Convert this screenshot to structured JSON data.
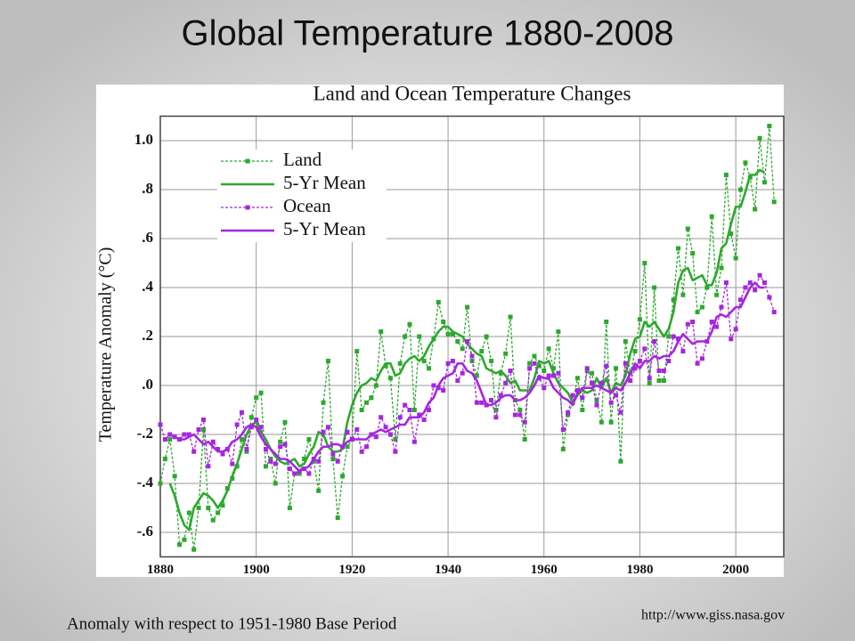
{
  "page": {
    "title": "Global Temperature 1880-2008",
    "footnote": "Anomaly with respect to 1951-1980 Base Period",
    "source": "http://www.giss.nasa.gov"
  },
  "chart_data": {
    "type": "line",
    "title": "Land and Ocean Temperature Changes",
    "y_label": "Temperature Anomaly (°C)",
    "x": [
      1880,
      1881,
      1882,
      1883,
      1884,
      1885,
      1886,
      1887,
      1888,
      1889,
      1890,
      1891,
      1892,
      1893,
      1894,
      1895,
      1896,
      1897,
      1898,
      1899,
      1900,
      1901,
      1902,
      1903,
      1904,
      1905,
      1906,
      1907,
      1908,
      1909,
      1910,
      1911,
      1912,
      1913,
      1914,
      1915,
      1916,
      1917,
      1918,
      1919,
      1920,
      1921,
      1922,
      1923,
      1924,
      1925,
      1926,
      1927,
      1928,
      1929,
      1930,
      1931,
      1932,
      1933,
      1934,
      1935,
      1936,
      1937,
      1938,
      1939,
      1940,
      1941,
      1942,
      1943,
      1944,
      1945,
      1946,
      1947,
      1948,
      1949,
      1950,
      1951,
      1952,
      1953,
      1954,
      1955,
      1956,
      1957,
      1958,
      1959,
      1960,
      1961,
      1962,
      1963,
      1964,
      1965,
      1966,
      1967,
      1968,
      1969,
      1970,
      1971,
      1972,
      1973,
      1974,
      1975,
      1976,
      1977,
      1978,
      1979,
      1980,
      1981,
      1982,
      1983,
      1984,
      1985,
      1986,
      1987,
      1988,
      1989,
      1990,
      1991,
      1992,
      1993,
      1994,
      1995,
      1996,
      1997,
      1998,
      1999,
      2000,
      2001,
      2002,
      2003,
      2004,
      2005,
      2006,
      2007,
      2008
    ],
    "series": [
      {
        "name": "Land",
        "color": "#2ea82e",
        "dashed": true,
        "markers": true,
        "values": [
          -0.4,
          -0.3,
          -0.22,
          -0.37,
          -0.65,
          -0.63,
          -0.52,
          -0.67,
          -0.5,
          -0.18,
          -0.5,
          -0.55,
          -0.52,
          -0.49,
          -0.42,
          -0.38,
          -0.33,
          -0.22,
          -0.27,
          -0.13,
          -0.05,
          -0.03,
          -0.33,
          -0.3,
          -0.4,
          -0.23,
          -0.15,
          -0.5,
          -0.36,
          -0.36,
          -0.3,
          -0.22,
          -0.31,
          -0.43,
          -0.07,
          0.1,
          -0.3,
          -0.54,
          -0.37,
          -0.25,
          -0.22,
          0.14,
          -0.1,
          -0.07,
          -0.05,
          0.0,
          0.22,
          0.08,
          0.03,
          -0.22,
          0.09,
          0.2,
          0.25,
          -0.1,
          0.2,
          0.1,
          0.07,
          0.19,
          0.34,
          0.26,
          0.21,
          0.21,
          0.18,
          0.15,
          0.32,
          0.1,
          0.04,
          0.14,
          0.2,
          0.1,
          -0.1,
          0.05,
          0.13,
          0.28,
          -0.06,
          -0.1,
          -0.22,
          0.09,
          0.12,
          0.08,
          0.06,
          0.15,
          0.07,
          0.22,
          -0.26,
          -0.12,
          -0.07,
          0.03,
          -0.1,
          0.06,
          0.05,
          -0.06,
          -0.15,
          0.26,
          -0.15,
          0.07,
          -0.31,
          0.18,
          0.05,
          0.14,
          0.27,
          0.5,
          0.01,
          0.4,
          0.02,
          0.02,
          0.2,
          0.35,
          0.56,
          0.37,
          0.64,
          0.54,
          0.3,
          0.32,
          0.4,
          0.69,
          0.37,
          0.48,
          0.86,
          0.62,
          0.52,
          0.8,
          0.91,
          0.85,
          0.72,
          1.01,
          0.83,
          1.06,
          0.75
        ]
      },
      {
        "name": "5-Yr Mean",
        "color": "#2ea82e",
        "dashed": false,
        "markers": false,
        "values": [
          null,
          null,
          -0.4,
          -0.45,
          -0.52,
          -0.57,
          -0.59,
          -0.5,
          -0.47,
          -0.44,
          -0.45,
          -0.47,
          -0.5,
          -0.47,
          -0.43,
          -0.37,
          -0.32,
          -0.26,
          -0.2,
          -0.16,
          -0.15,
          -0.19,
          -0.22,
          -0.26,
          -0.29,
          -0.31,
          -0.32,
          -0.31,
          -0.3,
          -0.33,
          -0.32,
          -0.28,
          -0.25,
          -0.19,
          -0.2,
          -0.25,
          -0.27,
          -0.27,
          -0.26,
          -0.15,
          -0.08,
          -0.03,
          0.0,
          0.01,
          0.03,
          0.02,
          0.06,
          0.09,
          0.09,
          0.04,
          0.05,
          0.09,
          0.11,
          0.12,
          0.1,
          0.12,
          0.16,
          0.19,
          0.22,
          0.24,
          0.24,
          0.22,
          0.21,
          0.2,
          0.17,
          0.15,
          0.13,
          0.12,
          0.07,
          0.06,
          0.05,
          0.06,
          0.04,
          0.01,
          0.02,
          -0.02,
          -0.02,
          -0.02,
          0.03,
          0.1,
          0.09,
          0.1,
          0.05,
          0.01,
          -0.01,
          -0.03,
          -0.07,
          -0.04,
          -0.02,
          -0.03,
          -0.02,
          0.03,
          -0.01,
          0.03,
          -0.03,
          0.01,
          0.0,
          0.04,
          0.13,
          0.19,
          0.2,
          0.26,
          0.24,
          0.26,
          0.23,
          0.2,
          0.23,
          0.3,
          0.42,
          0.47,
          0.48,
          0.43,
          0.44,
          0.45,
          0.41,
          0.41,
          0.46,
          0.56,
          0.58,
          0.66,
          0.73,
          0.73,
          0.79,
          0.86,
          0.86,
          0.88,
          0.87,
          null,
          null
        ]
      },
      {
        "name": "Ocean",
        "color": "#a526e0",
        "dashed": true,
        "markers": true,
        "values": [
          -0.16,
          -0.22,
          -0.2,
          -0.21,
          -0.22,
          -0.2,
          -0.2,
          -0.27,
          -0.18,
          -0.14,
          -0.33,
          -0.23,
          -0.26,
          -0.28,
          -0.26,
          -0.32,
          -0.16,
          -0.11,
          -0.26,
          -0.17,
          -0.14,
          -0.17,
          -0.26,
          -0.31,
          -0.32,
          -0.25,
          -0.24,
          -0.34,
          -0.36,
          -0.35,
          -0.34,
          -0.36,
          -0.3,
          -0.31,
          -0.19,
          -0.17,
          -0.28,
          -0.31,
          -0.25,
          -0.19,
          -0.22,
          -0.18,
          -0.27,
          -0.25,
          -0.2,
          -0.21,
          -0.13,
          -0.17,
          -0.2,
          -0.27,
          -0.13,
          -0.08,
          -0.1,
          -0.23,
          -0.12,
          -0.14,
          -0.1,
          0.0,
          -0.01,
          -0.02,
          0.09,
          0.1,
          0.02,
          0.05,
          0.18,
          0.12,
          -0.07,
          -0.07,
          -0.08,
          -0.06,
          -0.13,
          -0.04,
          0.01,
          0.06,
          -0.12,
          -0.12,
          -0.15,
          0.07,
          0.09,
          0.03,
          -0.01,
          0.04,
          0.04,
          0.05,
          -0.18,
          -0.11,
          -0.04,
          -0.02,
          -0.05,
          0.07,
          0.01,
          -0.08,
          0.01,
          0.08,
          -0.07,
          -0.04,
          -0.11,
          0.09,
          0.02,
          0.07,
          0.1,
          0.15,
          0.03,
          0.18,
          0.06,
          0.06,
          0.1,
          0.2,
          0.19,
          0.14,
          0.25,
          0.26,
          0.09,
          0.11,
          0.18,
          0.26,
          0.24,
          0.32,
          0.42,
          0.19,
          0.23,
          0.35,
          0.4,
          0.42,
          0.39,
          0.45,
          0.42,
          0.36,
          0.3
        ]
      },
      {
        "name": "5-Yr Mean",
        "color": "#a526e0",
        "dashed": false,
        "markers": false,
        "values": [
          null,
          null,
          -0.2,
          -0.21,
          -0.22,
          -0.22,
          -0.21,
          -0.2,
          -0.22,
          -0.24,
          -0.23,
          -0.25,
          -0.27,
          -0.27,
          -0.26,
          -0.23,
          -0.22,
          -0.2,
          -0.17,
          -0.16,
          -0.17,
          -0.21,
          -0.24,
          -0.26,
          -0.28,
          -0.3,
          -0.3,
          -0.31,
          -0.33,
          -0.35,
          -0.34,
          -0.33,
          -0.3,
          -0.27,
          -0.25,
          -0.25,
          -0.24,
          -0.24,
          -0.25,
          -0.23,
          -0.22,
          -0.22,
          -0.22,
          -0.22,
          -0.2,
          -0.19,
          -0.18,
          -0.19,
          -0.18,
          -0.17,
          -0.16,
          -0.16,
          -0.13,
          -0.13,
          -0.13,
          -0.11,
          -0.07,
          -0.05,
          0.0,
          0.03,
          0.04,
          0.05,
          0.09,
          0.09,
          0.06,
          0.05,
          0.02,
          -0.03,
          -0.08,
          -0.08,
          -0.07,
          -0.05,
          -0.04,
          -0.04,
          -0.06,
          -0.06,
          -0.05,
          -0.03,
          0.0,
          0.04,
          0.03,
          0.03,
          -0.01,
          -0.03,
          -0.05,
          -0.06,
          -0.08,
          -0.03,
          -0.01,
          -0.01,
          -0.01,
          0.0,
          -0.01,
          -0.02,
          -0.03,
          -0.01,
          -0.02,
          0.01,
          0.05,
          0.09,
          0.07,
          0.1,
          0.1,
          0.12,
          0.11,
          0.12,
          0.12,
          0.14,
          0.18,
          0.21,
          0.19,
          0.17,
          0.18,
          0.18,
          0.18,
          0.22,
          0.28,
          0.29,
          0.28,
          0.3,
          0.32,
          0.32,
          0.36,
          0.4,
          0.42,
          0.4,
          0.4,
          null,
          null
        ]
      }
    ],
    "xlim": [
      1880,
      2010
    ],
    "xticks": [
      1880,
      1900,
      1920,
      1940,
      1960,
      1980,
      2000
    ],
    "ylim": [
      -0.7,
      1.1
    ],
    "yticks": [
      {
        "value": -0.6,
        "label": "-.6"
      },
      {
        "value": -0.4,
        "label": "-.4"
      },
      {
        "value": -0.2,
        "label": "-.2"
      },
      {
        "value": 0,
        "label": ".0"
      },
      {
        "value": 0.2,
        "label": ".2"
      },
      {
        "value": 0.4,
        "label": ".4"
      },
      {
        "value": 0.6,
        "label": ".6"
      },
      {
        "value": 0.8,
        "label": ".8"
      },
      {
        "value": 1.0,
        "label": "1.0"
      }
    ],
    "grid": true,
    "legend": "upper left"
  }
}
